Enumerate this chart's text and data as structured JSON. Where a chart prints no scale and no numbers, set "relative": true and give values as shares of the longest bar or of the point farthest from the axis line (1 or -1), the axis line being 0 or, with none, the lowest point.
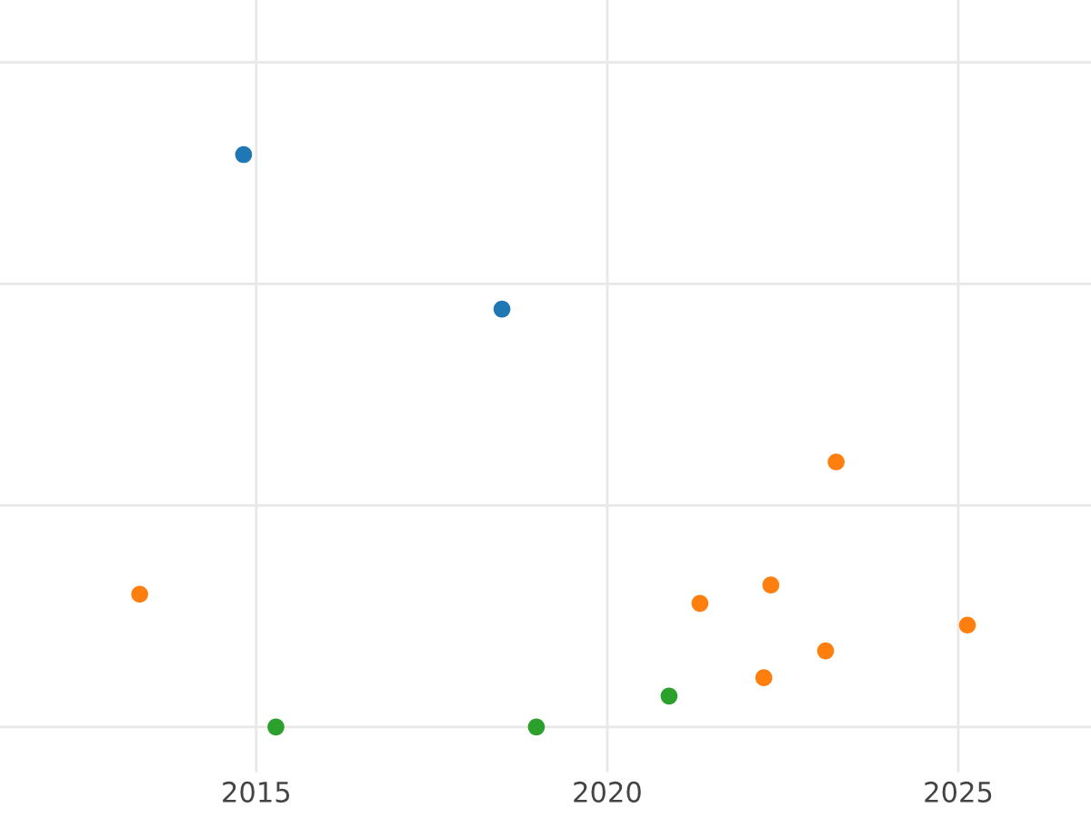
{
  "chart_data": {
    "type": "scatter",
    "relative": true,
    "series": [
      {
        "color": "#1f77b4",
        "x": [
          2014.82,
          2018.5
        ],
        "values": [
          1.0,
          0.73
        ]
      },
      {
        "color": "#ff7f0e",
        "x": [
          2013.34,
          2021.32,
          2022.33,
          2023.26,
          2022.23,
          2023.11,
          2025.13
        ],
        "values": [
          0.232,
          0.216,
          0.248,
          0.463,
          0.086,
          0.133,
          0.178
        ]
      },
      {
        "color": "#2ca02c",
        "x": [
          2015.28,
          2018.99,
          2020.88
        ],
        "values": [
          0.0,
          0.0,
          0.054
        ]
      }
    ],
    "xlim": [
      2011.35,
      2026.89
    ],
    "xticks": [
      2015,
      2020,
      2025
    ],
    "grid": true,
    "marker": "circle",
    "legend": false
  }
}
